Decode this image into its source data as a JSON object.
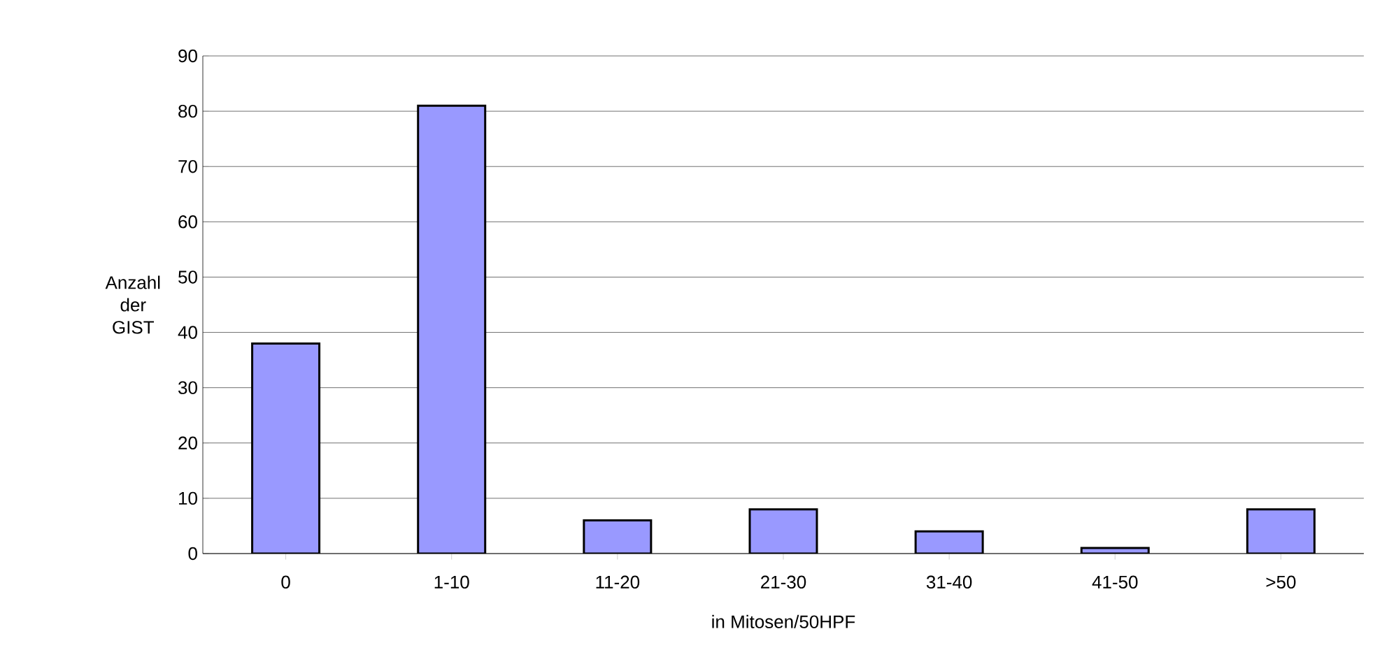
{
  "chart_data": {
    "type": "bar",
    "xlabel": "in Mitosen/50HPF",
    "ylabel": "Anzahl der GIST",
    "categories": [
      "0",
      "1-10",
      "11-20",
      "21-30",
      "31-40",
      "41-50",
      ">50"
    ],
    "values": [
      38,
      81,
      6,
      8,
      4,
      1,
      8
    ],
    "color": "#9999ff",
    "ylim": [
      0,
      90
    ],
    "yticks": [
      0,
      10,
      20,
      30,
      40,
      50,
      60,
      70,
      80,
      90
    ],
    "grid": "y"
  }
}
